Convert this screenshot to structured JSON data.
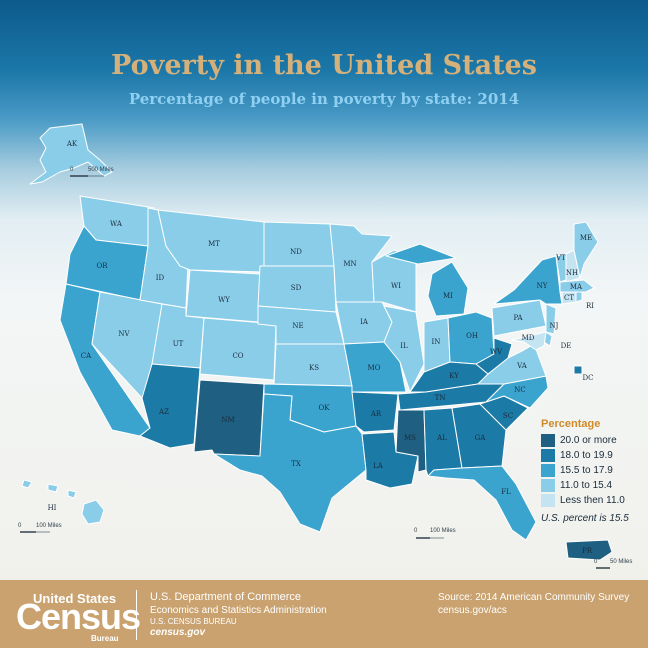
{
  "title": "Poverty in the United States",
  "subtitle": "Percentage of people in poverty by state: 2014",
  "legend": {
    "title": "Percentage",
    "bins": [
      {
        "label": "20.0 or more",
        "color": "#1e5f82"
      },
      {
        "label": "18.0 to 19.9",
        "color": "#1c7aa6"
      },
      {
        "label": "15.5 to 17.9",
        "color": "#3aa4cf"
      },
      {
        "label": "11.0 to 15.4",
        "color": "#8acde9"
      },
      {
        "label": "Less then 11.0",
        "color": "#c4e4f2"
      }
    ]
  },
  "us_percent": "U.S. percent is 15.5",
  "scales": {
    "alaska": "500 Miles",
    "hawaii": "100 Miles",
    "mainland": "100 Miles",
    "puerto_rico": "50 Miles",
    "zero": "0"
  },
  "states": [
    {
      "abbr": "WA",
      "bin": 3
    },
    {
      "abbr": "OR",
      "bin": 2
    },
    {
      "abbr": "CA",
      "bin": 2
    },
    {
      "abbr": "NV",
      "bin": 3
    },
    {
      "abbr": "ID",
      "bin": 3
    },
    {
      "abbr": "MT",
      "bin": 3
    },
    {
      "abbr": "WY",
      "bin": 3
    },
    {
      "abbr": "UT",
      "bin": 3
    },
    {
      "abbr": "CO",
      "bin": 3
    },
    {
      "abbr": "AZ",
      "bin": 1
    },
    {
      "abbr": "NM",
      "bin": 0
    },
    {
      "abbr": "ND",
      "bin": 3
    },
    {
      "abbr": "SD",
      "bin": 3
    },
    {
      "abbr": "NE",
      "bin": 3
    },
    {
      "abbr": "KS",
      "bin": 3
    },
    {
      "abbr": "OK",
      "bin": 2
    },
    {
      "abbr": "TX",
      "bin": 2
    },
    {
      "abbr": "MN",
      "bin": 3
    },
    {
      "abbr": "IA",
      "bin": 3
    },
    {
      "abbr": "MO",
      "bin": 2
    },
    {
      "abbr": "AR",
      "bin": 1
    },
    {
      "abbr": "LA",
      "bin": 1
    },
    {
      "abbr": "WI",
      "bin": 3
    },
    {
      "abbr": "IL",
      "bin": 3
    },
    {
      "abbr": "MI",
      "bin": 2
    },
    {
      "abbr": "IN",
      "bin": 3
    },
    {
      "abbr": "OH",
      "bin": 2
    },
    {
      "abbr": "KY",
      "bin": 1
    },
    {
      "abbr": "TN",
      "bin": 1
    },
    {
      "abbr": "MS",
      "bin": 0
    },
    {
      "abbr": "AL",
      "bin": 1
    },
    {
      "abbr": "GA",
      "bin": 1
    },
    {
      "abbr": "FL",
      "bin": 2
    },
    {
      "abbr": "SC",
      "bin": 1
    },
    {
      "abbr": "NC",
      "bin": 2
    },
    {
      "abbr": "VA",
      "bin": 3
    },
    {
      "abbr": "WV",
      "bin": 1
    },
    {
      "abbr": "PA",
      "bin": 3
    },
    {
      "abbr": "NY",
      "bin": 2
    },
    {
      "abbr": "VT",
      "bin": 3
    },
    {
      "abbr": "NH",
      "bin": 4
    },
    {
      "abbr": "ME",
      "bin": 3
    },
    {
      "abbr": "MA",
      "bin": 3
    },
    {
      "abbr": "RI",
      "bin": 3
    },
    {
      "abbr": "CT",
      "bin": 4
    },
    {
      "abbr": "NJ",
      "bin": 3
    },
    {
      "abbr": "DE",
      "bin": 3
    },
    {
      "abbr": "MD",
      "bin": 4
    },
    {
      "abbr": "DC",
      "bin": 1
    },
    {
      "abbr": "AK",
      "bin": 3
    },
    {
      "abbr": "HI",
      "bin": 3
    },
    {
      "abbr": "PR",
      "bin": 0
    }
  ],
  "footer": {
    "census_line1": "United States",
    "census_line2": "Census",
    "census_line3": "Bureau",
    "dept_line1": "U.S. Department of Commerce",
    "dept_line2": "Economics and Statistics Administration",
    "dept_line3": "U.S. CENSUS BUREAU",
    "dept_line4": "census.gov",
    "source_line1": "Source: 2014 American Community Survey",
    "source_line2": "census.gov/acs"
  }
}
